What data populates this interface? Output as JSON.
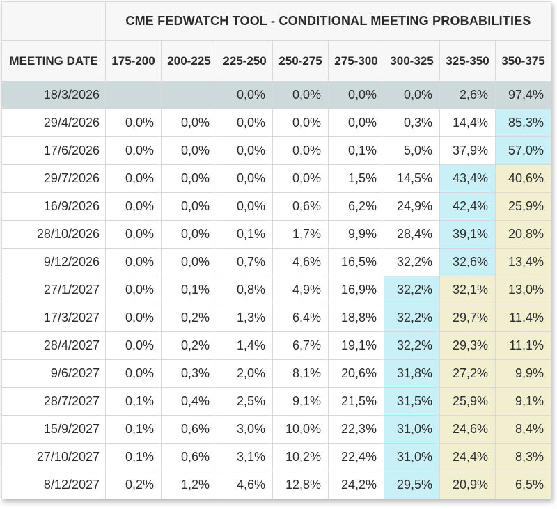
{
  "title": "CME FEDWATCH TOOL - CONDITIONAL MEETING PROBABILITIES",
  "table": {
    "corner_label": "",
    "meeting_date_header": "MEETING DATE",
    "rate_range_headers": [
      "175-200",
      "200-225",
      "225-250",
      "250-275",
      "275-300",
      "300-325",
      "325-350",
      "350-375"
    ],
    "rows": [
      {
        "date": "18/3/2026",
        "values": [
          "",
          "",
          "0,0%",
          "0,0%",
          "0,0%",
          "0,0%",
          "2,6%",
          "97,4%"
        ],
        "selected": true,
        "highlights": [
          "",
          "",
          "",
          "",
          "",
          "",
          "",
          ""
        ]
      },
      {
        "date": "29/4/2026",
        "values": [
          "0,0%",
          "0,0%",
          "0,0%",
          "0,0%",
          "0,0%",
          "0,3%",
          "14,4%",
          "85,3%"
        ],
        "selected": false,
        "highlights": [
          "",
          "",
          "",
          "",
          "",
          "",
          "",
          "cyan"
        ]
      },
      {
        "date": "17/6/2026",
        "values": [
          "0,0%",
          "0,0%",
          "0,0%",
          "0,0%",
          "0,1%",
          "5,0%",
          "37,9%",
          "57,0%"
        ],
        "selected": false,
        "highlights": [
          "",
          "",
          "",
          "",
          "",
          "",
          "",
          "cyan"
        ]
      },
      {
        "date": "29/7/2026",
        "values": [
          "0,0%",
          "0,0%",
          "0,0%",
          "0,0%",
          "1,5%",
          "14,5%",
          "43,4%",
          "40,6%"
        ],
        "selected": false,
        "highlights": [
          "",
          "",
          "",
          "",
          "",
          "",
          "cyan",
          "yellow"
        ]
      },
      {
        "date": "16/9/2026",
        "values": [
          "0,0%",
          "0,0%",
          "0,0%",
          "0,6%",
          "6,2%",
          "24,9%",
          "42,4%",
          "25,9%"
        ],
        "selected": false,
        "highlights": [
          "",
          "",
          "",
          "",
          "",
          "",
          "cyan",
          "yellow"
        ]
      },
      {
        "date": "28/10/2026",
        "values": [
          "0,0%",
          "0,0%",
          "0,1%",
          "1,7%",
          "9,9%",
          "28,4%",
          "39,1%",
          "20,8%"
        ],
        "selected": false,
        "highlights": [
          "",
          "",
          "",
          "",
          "",
          "",
          "cyan",
          "yellow"
        ]
      },
      {
        "date": "9/12/2026",
        "values": [
          "0,0%",
          "0,0%",
          "0,7%",
          "4,6%",
          "16,5%",
          "32,2%",
          "32,6%",
          "13,4%"
        ],
        "selected": false,
        "highlights": [
          "",
          "",
          "",
          "",
          "",
          "",
          "cyan",
          "yellow"
        ]
      },
      {
        "date": "27/1/2027",
        "values": [
          "0,0%",
          "0,1%",
          "0,8%",
          "4,9%",
          "16,9%",
          "32,2%",
          "32,1%",
          "13,0%"
        ],
        "selected": false,
        "highlights": [
          "",
          "",
          "",
          "",
          "",
          "cyan",
          "yellow",
          "yellow"
        ]
      },
      {
        "date": "17/3/2027",
        "values": [
          "0,0%",
          "0,2%",
          "1,3%",
          "6,4%",
          "18,8%",
          "32,2%",
          "29,7%",
          "11,4%"
        ],
        "selected": false,
        "highlights": [
          "",
          "",
          "",
          "",
          "",
          "cyan",
          "yellow",
          "yellow"
        ]
      },
      {
        "date": "28/4/2027",
        "values": [
          "0,0%",
          "0,2%",
          "1,4%",
          "6,7%",
          "19,1%",
          "32,2%",
          "29,3%",
          "11,1%"
        ],
        "selected": false,
        "highlights": [
          "",
          "",
          "",
          "",
          "",
          "cyan",
          "yellow",
          "yellow"
        ]
      },
      {
        "date": "9/6/2027",
        "values": [
          "0,0%",
          "0,3%",
          "2,0%",
          "8,1%",
          "20,6%",
          "31,8%",
          "27,2%",
          "9,9%"
        ],
        "selected": false,
        "highlights": [
          "",
          "",
          "",
          "",
          "",
          "cyan",
          "yellow",
          "yellow"
        ]
      },
      {
        "date": "28/7/2027",
        "values": [
          "0,1%",
          "0,4%",
          "2,5%",
          "9,1%",
          "21,5%",
          "31,5%",
          "25,9%",
          "9,1%"
        ],
        "selected": false,
        "highlights": [
          "",
          "",
          "",
          "",
          "",
          "cyan",
          "yellow",
          "yellow"
        ]
      },
      {
        "date": "15/9/2027",
        "values": [
          "0,1%",
          "0,6%",
          "3,0%",
          "10,0%",
          "22,3%",
          "31,0%",
          "24,6%",
          "8,4%"
        ],
        "selected": false,
        "highlights": [
          "",
          "",
          "",
          "",
          "",
          "cyan",
          "yellow",
          "yellow"
        ]
      },
      {
        "date": "27/10/2027",
        "values": [
          "0,1%",
          "0,6%",
          "3,1%",
          "10,2%",
          "22,4%",
          "31,0%",
          "24,4%",
          "8,3%"
        ],
        "selected": false,
        "highlights": [
          "",
          "",
          "",
          "",
          "",
          "cyan",
          "yellow",
          "yellow"
        ]
      },
      {
        "date": "8/12/2027",
        "values": [
          "0,2%",
          "1,2%",
          "4,6%",
          "12,8%",
          "24,2%",
          "29,5%",
          "20,9%",
          "6,5%"
        ],
        "selected": false,
        "highlights": [
          "",
          "",
          "",
          "",
          "",
          "cyan",
          "yellow",
          "yellow"
        ]
      }
    ]
  },
  "colors": {
    "selected_row_bg": "#cdd9db",
    "cyan_highlight_bg": "#c9f0f7",
    "yellow_highlight_bg": "#f2efd0",
    "header_bg": "#f7f7f7",
    "grid_border": "#d9d9d9",
    "text": "#2c2c2c"
  },
  "chart_data": {
    "type": "table",
    "title": "CME FEDWATCH TOOL - CONDITIONAL MEETING PROBABILITIES",
    "unit": "probability %",
    "columns": [
      "MEETING DATE",
      "175-200",
      "200-225",
      "225-250",
      "250-275",
      "275-300",
      "300-325",
      "325-350",
      "350-375"
    ],
    "rows": [
      [
        "18/3/2026",
        null,
        null,
        0.0,
        0.0,
        0.0,
        0.0,
        2.6,
        97.4
      ],
      [
        "29/4/2026",
        0.0,
        0.0,
        0.0,
        0.0,
        0.0,
        0.3,
        14.4,
        85.3
      ],
      [
        "17/6/2026",
        0.0,
        0.0,
        0.0,
        0.0,
        0.1,
        5.0,
        37.9,
        57.0
      ],
      [
        "29/7/2026",
        0.0,
        0.0,
        0.0,
        0.0,
        1.5,
        14.5,
        43.4,
        40.6
      ],
      [
        "16/9/2026",
        0.0,
        0.0,
        0.0,
        0.6,
        6.2,
        24.9,
        42.4,
        25.9
      ],
      [
        "28/10/2026",
        0.0,
        0.0,
        0.1,
        1.7,
        9.9,
        28.4,
        39.1,
        20.8
      ],
      [
        "9/12/2026",
        0.0,
        0.0,
        0.7,
        4.6,
        16.5,
        32.2,
        32.6,
        13.4
      ],
      [
        "27/1/2027",
        0.0,
        0.1,
        0.8,
        4.9,
        16.9,
        32.2,
        32.1,
        13.0
      ],
      [
        "17/3/2027",
        0.0,
        0.2,
        1.3,
        6.4,
        18.8,
        32.2,
        29.7,
        11.4
      ],
      [
        "28/4/2027",
        0.0,
        0.2,
        1.4,
        6.7,
        19.1,
        32.2,
        29.3,
        11.1
      ],
      [
        "9/6/2027",
        0.0,
        0.3,
        2.0,
        8.1,
        20.6,
        31.8,
        27.2,
        9.9
      ],
      [
        "28/7/2027",
        0.1,
        0.4,
        2.5,
        9.1,
        21.5,
        31.5,
        25.9,
        9.1
      ],
      [
        "15/9/2027",
        0.1,
        0.6,
        3.0,
        10.0,
        22.3,
        31.0,
        24.6,
        8.4
      ],
      [
        "27/10/2027",
        0.1,
        0.6,
        3.1,
        10.2,
        22.4,
        31.0,
        24.4,
        8.3
      ],
      [
        "8/12/2027",
        0.2,
        1.2,
        4.6,
        12.8,
        24.2,
        29.5,
        20.9,
        6.5
      ]
    ]
  }
}
